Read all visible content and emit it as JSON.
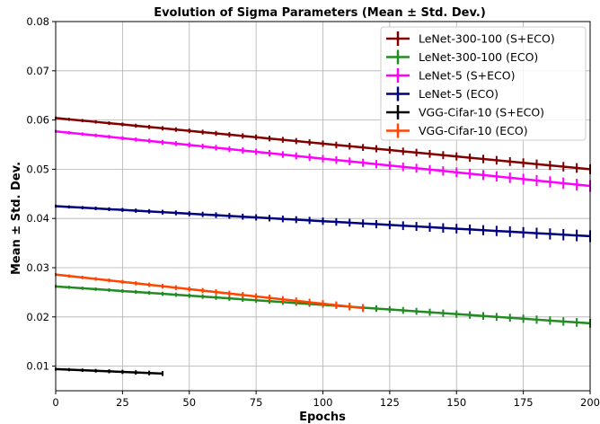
{
  "chart_data": {
    "type": "line",
    "title": "Evolution of Sigma Parameters (Mean ± Std. Dev.)",
    "xlabel": "Epochs",
    "ylabel": "Mean ± Std. Dev.",
    "xlim": [
      0,
      200
    ],
    "ylim": [
      0.005,
      0.08
    ],
    "xticks": [
      0,
      25,
      50,
      75,
      100,
      125,
      150,
      175,
      200
    ],
    "yticks": [
      0.01,
      0.02,
      0.03,
      0.04,
      0.05,
      0.06,
      0.07,
      0.08
    ],
    "grid": true,
    "legend_position": "top-right",
    "series": [
      {
        "name": "LeNet-300-100 (S+ECO)",
        "color": "#800000",
        "x_start": 0,
        "x_end": 200,
        "y_start": 0.0604,
        "y_end": 0.05,
        "err_start": 0.0003,
        "err_end": 0.001
      },
      {
        "name": "LeNet-300-100 (ECO)",
        "color": "#228B22",
        "x_start": 0,
        "x_end": 200,
        "y_start": 0.0262,
        "y_end": 0.0187,
        "err_start": 0.0003,
        "err_end": 0.0009
      },
      {
        "name": "LeNet-5 (S+ECO)",
        "color": "#FF00FF",
        "x_start": 0,
        "x_end": 200,
        "y_start": 0.0577,
        "y_end": 0.0466,
        "err_start": 0.0003,
        "err_end": 0.0012
      },
      {
        "name": "LeNet-5 (ECO)",
        "color": "#00007F",
        "x_start": 0,
        "x_end": 200,
        "y_start": 0.0425,
        "y_end": 0.0364,
        "err_start": 0.0003,
        "err_end": 0.0012
      },
      {
        "name": "VGG-Cifar-10 (S+ECO)",
        "color": "#000000",
        "x_start": 0,
        "x_end": 40,
        "y_start": 0.0094,
        "y_end": 0.0085,
        "err_start": 0.0003,
        "err_end": 0.0005
      },
      {
        "name": "VGG-Cifar-10 (ECO)",
        "color": "#FF4500",
        "x_start": 0,
        "x_end": 115,
        "y_start": 0.0286,
        "y_end": 0.0218,
        "err_start": 0.0003,
        "err_end": 0.0008
      }
    ]
  }
}
